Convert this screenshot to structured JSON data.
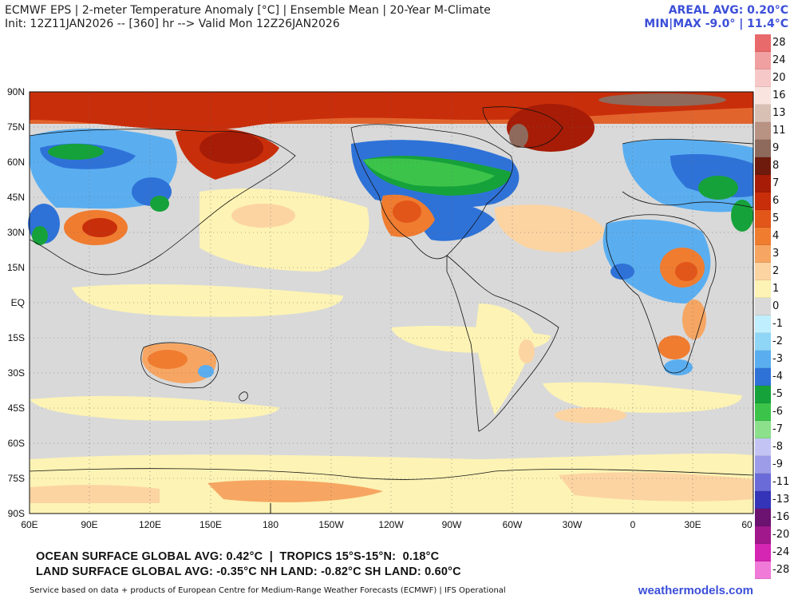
{
  "header": {
    "line1": "ECMWF EPS | 2-meter Temperature Anomaly [°C] | Ensemble Mean | 20-Year M-Climate",
    "line2": "Init: 12Z11JAN2026 -- [360] hr --> Valid Mon 12Z26JAN2026",
    "areal_avg": "AREAL AVG: 0.20°C",
    "minmax": "MIN|MAX -9.0° | 11.4°C"
  },
  "map": {
    "lat_labels": [
      "90N",
      "75N",
      "60N",
      "45N",
      "30N",
      "15N",
      "EQ",
      "15S",
      "30S",
      "45S",
      "60S",
      "75S",
      "90S"
    ],
    "lon_labels": [
      "60E",
      "90E",
      "120E",
      "150E",
      "180",
      "150W",
      "120W",
      "90W",
      "60W",
      "30W",
      "0",
      "30E",
      "60"
    ]
  },
  "colorbar": {
    "labels": [
      "28",
      "24",
      "20",
      "16",
      "13",
      "11",
      "9",
      "8",
      "7",
      "6",
      "5",
      "4",
      "3",
      "2",
      "1",
      "0",
      "-1",
      "-2",
      "-3",
      "-4",
      "-5",
      "-6",
      "-7",
      "-8",
      "-9",
      "-11",
      "-13",
      "-16",
      "-20",
      "-24",
      "-28"
    ],
    "colors": [
      "#e86a6a",
      "#f0a0a0",
      "#f6c8c8",
      "#f9e4e0",
      "#d9c0b4",
      "#b89282",
      "#8e6a5c",
      "#6e1a0c",
      "#a61c06",
      "#c92e0a",
      "#e2561a",
      "#f07c30",
      "#f6a662",
      "#fcd4a2",
      "#fdf3b4",
      "#d9d9d9",
      "#bfeeff",
      "#8fd6f6",
      "#5aaef0",
      "#2e72d8",
      "#16a23a",
      "#3cc44a",
      "#8ce08c",
      "#c4c4f4",
      "#9c9ce8",
      "#6a6ad8",
      "#3434b8",
      "#6c1270",
      "#a0188c",
      "#d426b2",
      "#f07ad8"
    ]
  },
  "footer": {
    "line1": "OCEAN SURFACE GLOBAL AVG: 0.42°C  |  TROPICS 15°S-15°N:  0.18°C",
    "line2": "LAND SURFACE GLOBAL AVG: -0.35°C NH LAND: -0.82°C SH LAND: 0.60°C",
    "credit": "Service based on data + products of European Centre for Medium-Range Weather Forecasts (ECMWF) | IFS Operational",
    "brand": "weathermodels.com"
  }
}
